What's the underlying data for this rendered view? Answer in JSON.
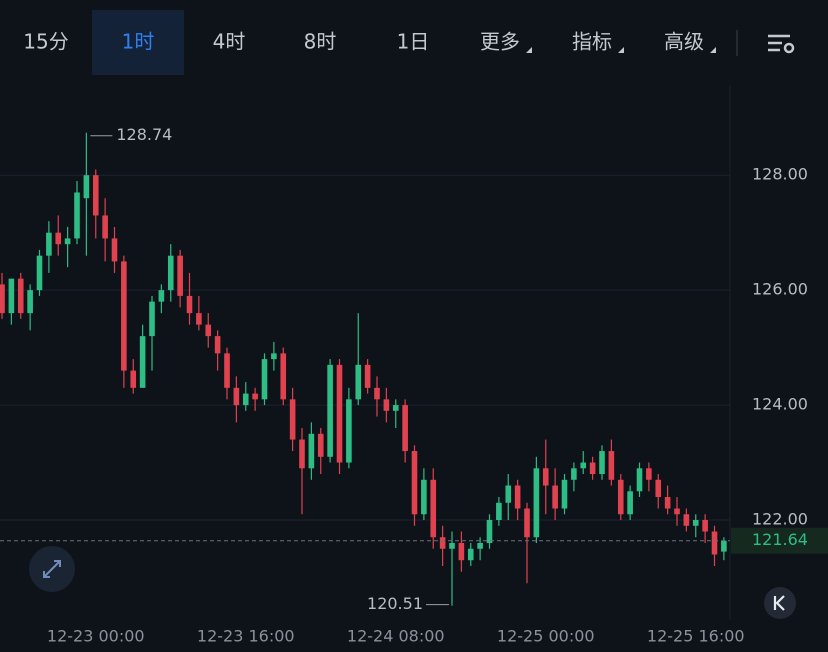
{
  "toolbar": {
    "tabs": [
      "15分",
      "1时",
      "4时",
      "8时",
      "1日",
      "更多",
      "指标",
      "高级"
    ],
    "active": 1
  },
  "chart_data": {
    "type": "candlestick",
    "categories": [
      null,
      null,
      null,
      null,
      null,
      null,
      null,
      null,
      null,
      null,
      "12-23 00:00",
      null,
      null,
      null,
      null,
      null,
      null,
      null,
      null,
      null,
      null,
      null,
      null,
      null,
      null,
      null,
      "12-23 16:00",
      null,
      null,
      null,
      null,
      null,
      null,
      null,
      null,
      null,
      null,
      null,
      null,
      null,
      null,
      null,
      "12-24 08:00",
      null,
      null,
      null,
      null,
      null,
      null,
      null,
      null,
      null,
      null,
      null,
      null,
      null,
      null,
      null,
      "12-25 00:00",
      null,
      null,
      null,
      null,
      null,
      null,
      null,
      null,
      null,
      null,
      null,
      null,
      null,
      null,
      null,
      "12-25 16:00",
      null,
      null,
      null
    ],
    "open": [
      126.1,
      125.6,
      126.2,
      125.6,
      126.0,
      126.6,
      127.0,
      126.8,
      126.9,
      127.6,
      128.0,
      127.3,
      126.9,
      126.5,
      124.6,
      124.3,
      125.2,
      125.8,
      126.0,
      126.6,
      125.9,
      125.6,
      125.4,
      125.2,
      124.9,
      124.3,
      124.0,
      124.2,
      124.1,
      124.8,
      124.9,
      124.1,
      123.4,
      122.9,
      123.5,
      123.1,
      124.7,
      123.0,
      124.1,
      124.7,
      124.3,
      124.1,
      123.9,
      124.0,
      123.2,
      122.1,
      122.7,
      121.7,
      121.5,
      121.6,
      121.3,
      121.5,
      121.6,
      122.0,
      122.3,
      122.6,
      122.2,
      121.7,
      122.9,
      122.6,
      122.2,
      122.7,
      122.9,
      123.0,
      122.8,
      123.2,
      122.7,
      122.1,
      122.5,
      122.9,
      122.7,
      122.4,
      122.2,
      122.1,
      121.9,
      122.0,
      121.8,
      121.45
    ],
    "high": [
      126.3,
      126.2,
      126.3,
      126.1,
      126.7,
      127.2,
      127.3,
      127.1,
      127.9,
      128.74,
      128.1,
      127.6,
      127.1,
      126.6,
      124.8,
      125.4,
      125.9,
      126.1,
      126.8,
      126.7,
      126.3,
      125.9,
      125.6,
      125.3,
      125.0,
      124.5,
      124.4,
      124.3,
      124.9,
      125.1,
      125.0,
      124.3,
      123.6,
      123.7,
      123.6,
      124.8,
      124.8,
      124.3,
      125.6,
      124.8,
      124.5,
      124.3,
      124.1,
      124.1,
      123.3,
      122.9,
      122.9,
      121.9,
      121.8,
      121.8,
      121.6,
      121.7,
      122.1,
      122.4,
      122.8,
      122.7,
      122.3,
      123.1,
      123.4,
      122.9,
      122.8,
      123.0,
      123.2,
      123.1,
      123.3,
      123.4,
      122.8,
      122.6,
      123.0,
      123.0,
      122.8,
      122.6,
      122.4,
      122.2,
      122.1,
      122.1,
      121.9,
      121.7
    ],
    "low": [
      125.5,
      125.4,
      125.5,
      125.3,
      125.9,
      126.3,
      126.6,
      126.4,
      126.8,
      126.6,
      126.9,
      126.5,
      126.3,
      124.3,
      124.2,
      124.3,
      124.6,
      125.6,
      125.8,
      125.7,
      125.4,
      125.3,
      125.0,
      124.6,
      124.1,
      123.7,
      123.9,
      123.9,
      124.0,
      124.6,
      124.0,
      123.2,
      122.1,
      122.7,
      122.8,
      123.0,
      122.8,
      122.9,
      124.0,
      124.2,
      123.8,
      123.7,
      123.6,
      123.0,
      121.9,
      122.0,
      121.5,
      121.2,
      120.51,
      121.1,
      121.2,
      121.3,
      121.5,
      121.9,
      122.0,
      122.0,
      120.9,
      121.6,
      122.1,
      122.0,
      122.1,
      122.5,
      122.8,
      122.7,
      122.7,
      122.6,
      122.0,
      122.0,
      122.4,
      122.5,
      122.2,
      122.1,
      121.9,
      121.8,
      121.7,
      121.6,
      121.2,
      121.3
    ],
    "close": [
      125.6,
      126.2,
      125.6,
      126.0,
      126.6,
      127.0,
      126.8,
      126.9,
      127.7,
      128.0,
      127.3,
      126.9,
      126.5,
      124.6,
      124.3,
      125.2,
      125.8,
      126.0,
      126.6,
      125.9,
      125.6,
      125.4,
      125.2,
      124.9,
      124.3,
      124.0,
      124.2,
      124.1,
      124.8,
      124.9,
      124.1,
      123.4,
      122.9,
      123.5,
      123.1,
      124.7,
      123.0,
      124.1,
      124.7,
      124.3,
      124.1,
      123.9,
      124.0,
      123.2,
      122.1,
      122.7,
      121.7,
      121.5,
      121.6,
      121.3,
      121.5,
      121.6,
      122.0,
      122.3,
      122.6,
      122.2,
      121.7,
      122.9,
      122.6,
      122.2,
      122.7,
      122.9,
      123.0,
      122.8,
      123.2,
      122.7,
      122.1,
      122.5,
      122.9,
      122.7,
      122.4,
      122.2,
      122.1,
      121.9,
      122.0,
      121.8,
      121.4,
      121.64
    ],
    "ylim": [
      120.26,
      129.57
    ],
    "yticks": [
      {
        "value": 122,
        "label": "122.00"
      },
      {
        "value": 124,
        "label": "124.00"
      },
      {
        "value": 126,
        "label": "126.00"
      },
      {
        "value": 128,
        "label": "128.00"
      }
    ],
    "grid": true,
    "up_color": "#2ebd85",
    "down_color": "#e0434f"
  }
}
